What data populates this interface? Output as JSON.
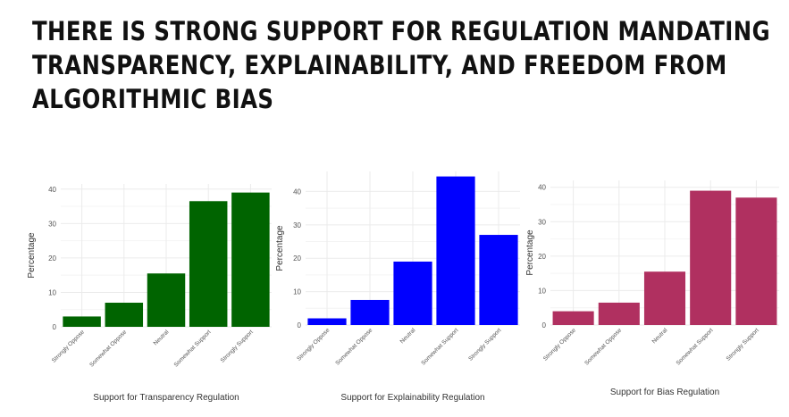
{
  "headline": {
    "lines": [
      "THERE IS STRONG SUPPORT FOR REGULATION MANDATING",
      "TRANSPARENCY, EXPLAINABILITY, AND FREEDOM FROM",
      "ALGORITHMIC BIAS"
    ]
  },
  "chart_data": [
    {
      "type": "bar",
      "categories": [
        "Strongly Oppose",
        "Somewhat Oppose",
        "Neutral",
        "Somewhat Support",
        "Strongly Support"
      ],
      "values": [
        3,
        7,
        15.5,
        36.5,
        39
      ],
      "xlabel": "Support for Transparency Regulation",
      "ylabel": "Percentage",
      "yticks": [
        0,
        10,
        20,
        30,
        40
      ],
      "ylim": [
        0,
        41.5
      ],
      "color": "#006400",
      "grid": true
    },
    {
      "type": "bar",
      "categories": [
        "Strongly Oppose",
        "Somewhat Oppose",
        "Neutral",
        "Somewhat Support",
        "Strongly Support"
      ],
      "values": [
        2,
        7.5,
        19,
        44.5,
        27
      ],
      "xlabel": "Support for Explainability Regulation",
      "ylabel": "Percentage",
      "yticks": [
        0,
        10,
        20,
        30,
        40
      ],
      "ylim": [
        0,
        46
      ],
      "color": "#0000ff",
      "grid": true
    },
    {
      "type": "bar",
      "categories": [
        "Strongly Oppose",
        "Somewhat Oppose",
        "Neutral",
        "Somewhat Support",
        "Strongly Support"
      ],
      "values": [
        4,
        6.5,
        15.5,
        39,
        37
      ],
      "xlabel": "Support for Bias Regulation",
      "ylabel": "Percentage",
      "yticks": [
        0,
        10,
        20,
        30,
        40
      ],
      "ylim": [
        0,
        42
      ],
      "color": "#b03060",
      "grid": true
    }
  ]
}
